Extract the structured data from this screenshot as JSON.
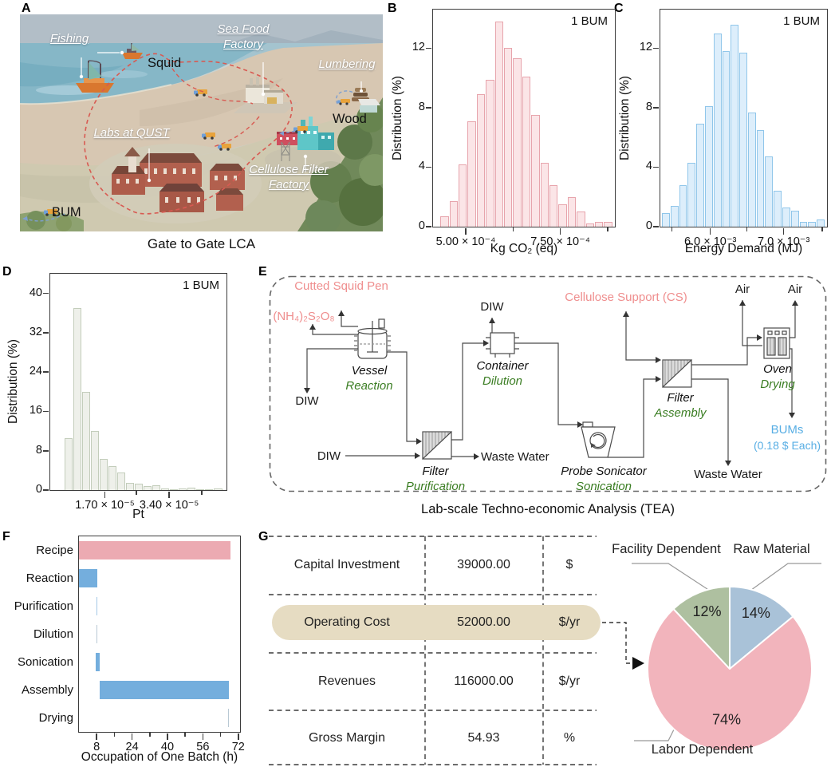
{
  "panels": {
    "a": "A",
    "b": "B",
    "c": "C",
    "d": "D",
    "e": "E",
    "f": "F",
    "g": "G"
  },
  "panel_a": {
    "caption": "Gate to Gate LCA",
    "labels": {
      "fishing": "Fishing",
      "squid": "Squid",
      "seafood_1": "Sea Food",
      "seafood_2": "Factory",
      "lumbering": "Lumbering",
      "wood": "Wood",
      "labs": "Labs at QUST",
      "cellulose_1": "Cellulose Filter",
      "cellulose_2": "Factory",
      "bum": "BUM"
    }
  },
  "panel_e": {
    "caption": "Lab-scale Techno-economic Analysis (TEA)",
    "streams": {
      "squid_pen": "Cutted Squid Pen",
      "aps": "(NH₄)₂S₂O₈",
      "diw": "DIW",
      "cellulose_support": "Cellulose Support (CS)",
      "air": "Air",
      "waste_water": "Waste Water",
      "bums_1": "BUMs",
      "bums_2": "(0.18 $ Each)"
    },
    "units": [
      {
        "name": "Vessel",
        "process": "Reaction"
      },
      {
        "name": "Container",
        "process": "Dilution"
      },
      {
        "name": "Filter",
        "process": "Purification"
      },
      {
        "name": "Probe Sonicator",
        "process": "Sonication"
      },
      {
        "name": "Filter",
        "process": "Assembly"
      },
      {
        "name": "Oven",
        "process": "Drying"
      }
    ]
  },
  "panel_g": {
    "rows": [
      {
        "label": "Capital Investment",
        "value": "39000.00",
        "unit": "$"
      },
      {
        "label": "Operating Cost",
        "value": "52000.00",
        "unit": "$/yr"
      },
      {
        "label": "Revenues",
        "value": "116000.00",
        "unit": "$/yr"
      },
      {
        "label": "Gross Margin",
        "value": "54.93",
        "unit": "%"
      }
    ]
  },
  "chart_data": [
    {
      "id": "co2-footprint",
      "type": "bar",
      "annotation": "1 BUM",
      "ylabel": "Distribution (%)",
      "xlabel": "Kg CO₂ (eq)",
      "ylim": [
        0,
        14.6
      ],
      "yticks": [
        0,
        4,
        8,
        12
      ],
      "xticks": [
        {
          "pos": 0.18,
          "label": "5.00 × 10⁻⁴"
        },
        {
          "pos": 0.7,
          "label": "7.50 × 10⁻⁴"
        }
      ],
      "minor_ticks": [
        0.44,
        0.96
      ],
      "values": [
        0.7,
        1.7,
        4.2,
        7.1,
        8.9,
        9.9,
        13.8,
        12,
        11.3,
        10.1,
        7.5,
        4.3,
        2.8,
        1.5,
        2,
        1,
        0.2,
        0.3,
        0.3
      ],
      "bar_fill": "#fbe5e7",
      "bar_edge": "#e7a4ac"
    },
    {
      "id": "energy-demand",
      "type": "bar",
      "annotation": "1 BUM",
      "ylabel": "Distribution (%)",
      "xlabel": "Energy Demand (MJ)",
      "ylim": [
        0,
        14.6
      ],
      "yticks": [
        0,
        4,
        8,
        12
      ],
      "xticks": [
        {
          "pos": 0.3,
          "label": "6.0 × 10⁻³"
        },
        {
          "pos": 0.74,
          "label": "7.0 × 10⁻³"
        }
      ],
      "minor_ticks": [
        0.07,
        0.52,
        0.97
      ],
      "values": [
        0.9,
        1.4,
        2.8,
        4.3,
        6.9,
        8.1,
        13,
        11.8,
        13.6,
        11.7,
        7.7,
        6.5,
        4.7,
        2.4,
        1.3,
        1.1,
        0.3,
        0.3,
        0.5
      ],
      "bar_fill": "#ddeefb",
      "bar_edge": "#90c6ea"
    },
    {
      "id": "ecoindicator-pt",
      "type": "bar",
      "annotation": "1 BUM",
      "ylabel": "Distribution (%)",
      "xlabel": "Pt",
      "ylim": [
        0,
        44
      ],
      "yticks": [
        0,
        8,
        16,
        24,
        32,
        40
      ],
      "xticks": [
        {
          "pos": 0.31,
          "label": "1.70 × 10⁻⁵"
        },
        {
          "pos": 0.675,
          "label": "3.40 × 10⁻⁵"
        }
      ],
      "minor_ticks": [
        0.49,
        0.86
      ],
      "values": [
        10.5,
        37,
        20,
        12,
        6.3,
        4.8,
        3.5,
        1.5,
        1.3,
        0.8,
        1,
        0.3,
        0.2,
        0.3,
        0.5,
        0.2,
        0.1,
        0.3
      ],
      "bar_fill": "#eef0ea",
      "bar_edge": "#c3cdbb"
    },
    {
      "id": "batch-occupation",
      "type": "bar-horizontal",
      "xlabel": "Occupation of One Batch (h)",
      "xlim": [
        0,
        72.8
      ],
      "xticks": [
        8,
        24,
        40,
        56,
        72
      ],
      "minor_xticks": [
        16,
        32,
        48,
        64
      ],
      "categories": [
        "Recipe",
        "Reaction",
        "Purification",
        "Dilution",
        "Sonication",
        "Assembly",
        "Drying"
      ],
      "bars": [
        {
          "start": 0,
          "end": 68.3,
          "color": "#ecaab2"
        },
        {
          "start": 0,
          "end": 8.4,
          "color": "#74aedd"
        },
        {
          "start": 7.8,
          "end": 8.4,
          "color": "#a5c9e6"
        },
        {
          "start": 7.95,
          "end": 8.2,
          "color": "#b9c9d4"
        },
        {
          "start": 7.7,
          "end": 9.5,
          "color": "#74aedd"
        },
        {
          "start": 9.5,
          "end": 67.6,
          "color": "#74aedd"
        },
        {
          "start": 67.4,
          "end": 67.9,
          "color": "#b9c9d4"
        }
      ]
    },
    {
      "id": "operating-cost-breakdown",
      "type": "pie",
      "start": "top",
      "direction": "clockwise",
      "legend_position": "outside",
      "slices": [
        {
          "label": "Raw Material",
          "value": 14,
          "color": "#a9c2d8"
        },
        {
          "label": "Labor Dependent",
          "value": 74,
          "color": "#f2b4bc"
        },
        {
          "label": "Facility Dependent",
          "value": 12,
          "color": "#aec0a0"
        }
      ]
    }
  ]
}
